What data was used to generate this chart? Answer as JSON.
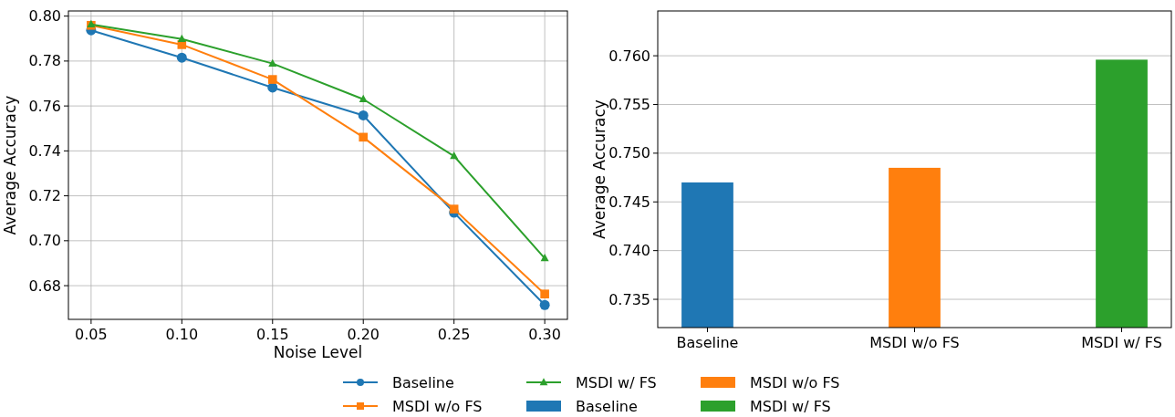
{
  "chart_data": [
    {
      "type": "line",
      "xlabel": "Noise Level",
      "ylabel": "Average Accuracy",
      "x": [
        0.05,
        0.1,
        0.15,
        0.2,
        0.25,
        0.3
      ],
      "xlim": [
        0.0375,
        0.3125
      ],
      "xticks": [
        {
          "value": 0.05,
          "label": "0.05"
        },
        {
          "value": 0.1,
          "label": "0.10"
        },
        {
          "value": 0.15,
          "label": "0.15"
        },
        {
          "value": 0.2,
          "label": "0.20"
        },
        {
          "value": 0.25,
          "label": "0.25"
        },
        {
          "value": 0.3,
          "label": "0.30"
        }
      ],
      "ylim": [
        0.665,
        0.8023
      ],
      "yticks": [
        {
          "value": 0.68,
          "label": "0.68"
        },
        {
          "value": 0.7,
          "label": "0.70"
        },
        {
          "value": 0.72,
          "label": "0.72"
        },
        {
          "value": 0.74,
          "label": "0.74"
        },
        {
          "value": 0.76,
          "label": "0.76"
        },
        {
          "value": 0.78,
          "label": "0.78"
        },
        {
          "value": 0.8,
          "label": "0.80"
        }
      ],
      "grid": true,
      "legend": "bottom",
      "series": [
        {
          "name": "Baseline",
          "color": "#1f77b4",
          "marker": "circle",
          "values": [
            0.7937,
            0.7815,
            0.7682,
            0.7558,
            0.7125,
            0.6714
          ]
        },
        {
          "name": "MSDI w/o FS",
          "color": "#ff7f0e",
          "marker": "square",
          "values": [
            0.7959,
            0.7873,
            0.7718,
            0.7461,
            0.7141,
            0.6763
          ]
        },
        {
          "name": "MSDI w/ FS",
          "color": "#2ca02c",
          "marker": "triangle",
          "values": [
            0.7963,
            0.7898,
            0.7789,
            0.763,
            0.7377,
            0.6922
          ]
        }
      ]
    },
    {
      "type": "bar",
      "ylabel": "Average Accuracy",
      "categories": [
        "Baseline",
        "MSDI w/o FS",
        "MSDI w/ FS"
      ],
      "series": [
        {
          "name": "Baseline",
          "color": "#1f77b4",
          "values": [
            0.747,
            null,
            null
          ]
        },
        {
          "name": "MSDI w/o FS",
          "color": "#ff7f0e",
          "values": [
            null,
            0.7485,
            null
          ]
        },
        {
          "name": "MSDI w/ FS",
          "color": "#2ca02c",
          "values": [
            null,
            null,
            0.7596
          ]
        }
      ],
      "ylim": [
        0.7321,
        0.7646
      ],
      "yticks": [
        {
          "value": 0.735,
          "label": "0.735"
        },
        {
          "value": 0.74,
          "label": "0.740"
        },
        {
          "value": 0.745,
          "label": "0.745"
        },
        {
          "value": 0.75,
          "label": "0.750"
        },
        {
          "value": 0.755,
          "label": "0.755"
        },
        {
          "value": 0.76,
          "label": "0.760"
        }
      ],
      "grid": "y",
      "legend": "bottom"
    }
  ]
}
